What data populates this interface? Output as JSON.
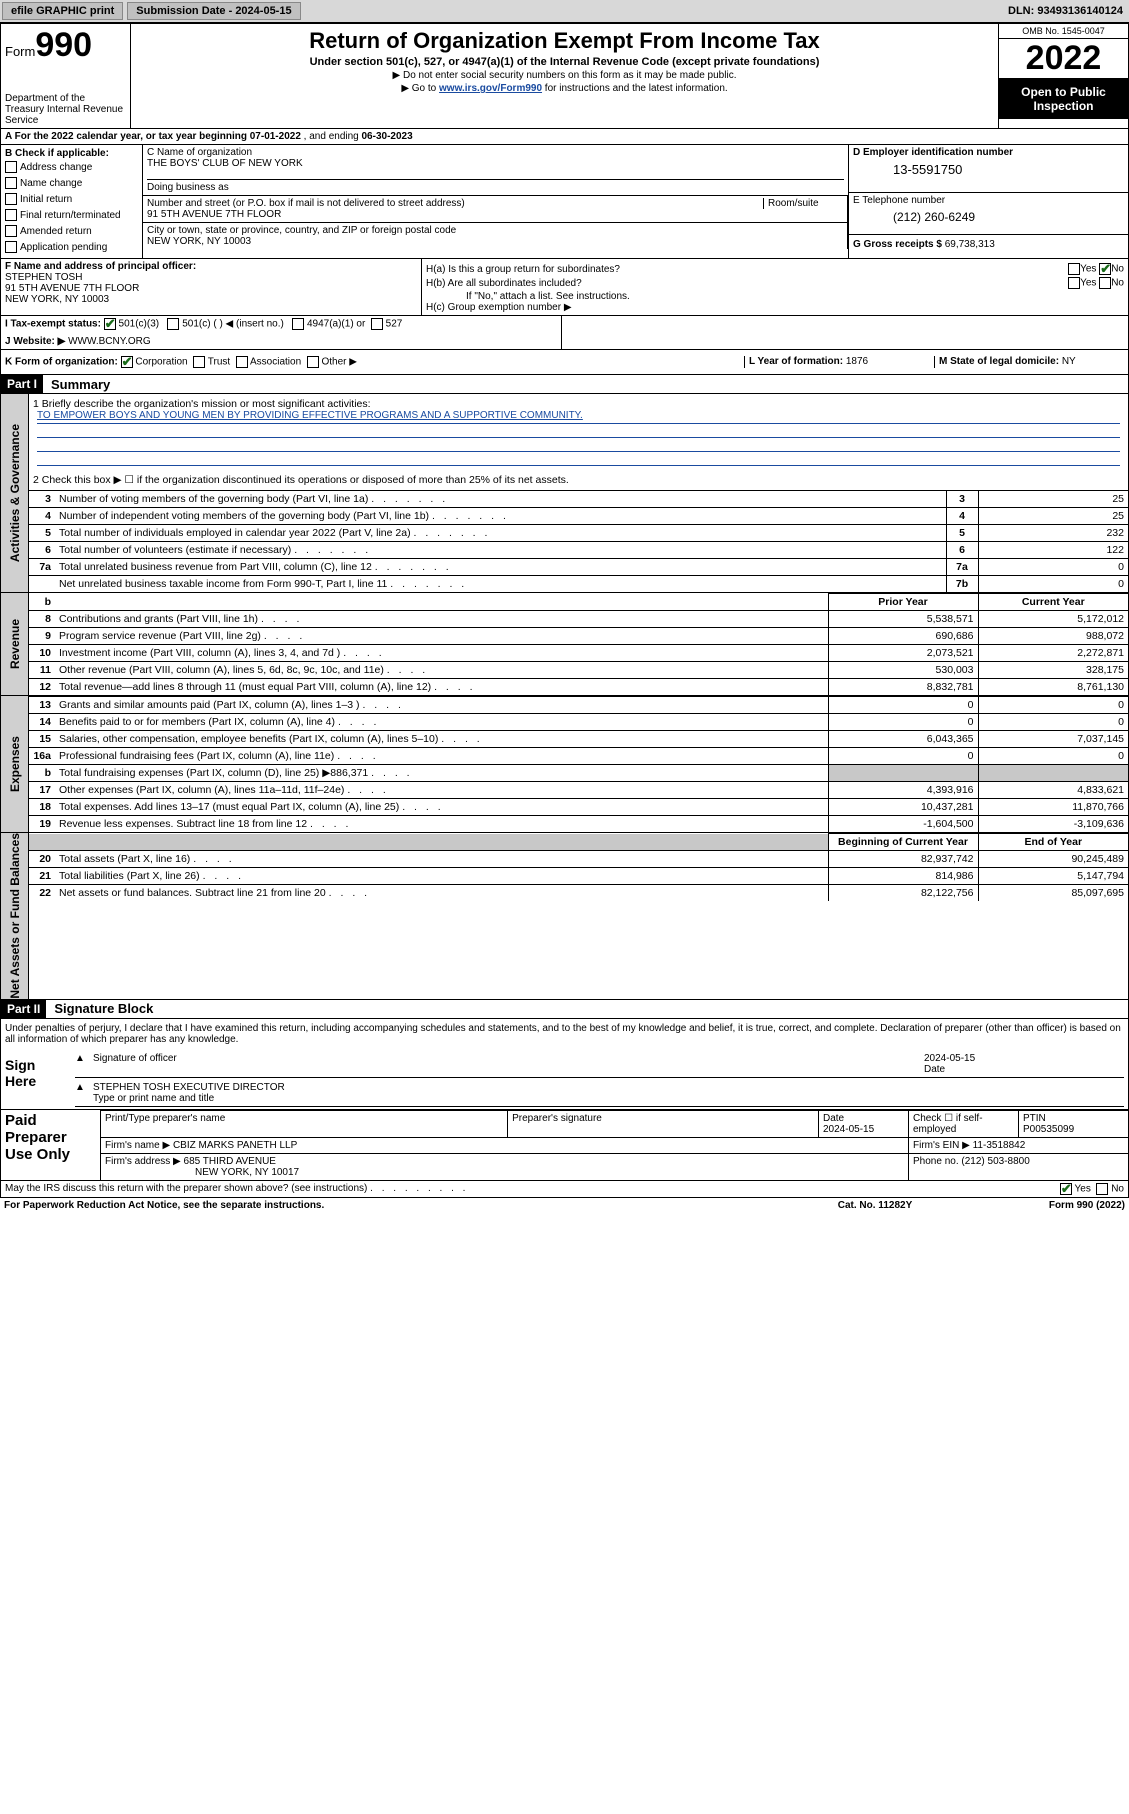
{
  "topbar": {
    "efile": "efile GRAPHIC print",
    "submission_label": "Submission Date - 2024-05-15",
    "dln": "DLN: 93493136140124"
  },
  "header": {
    "form_prefix": "Form",
    "form_number": "990",
    "title": "Return of Organization Exempt From Income Tax",
    "subtitle": "Under section 501(c), 527, or 4947(a)(1) of the Internal Revenue Code (except private foundations)",
    "note1": "▶ Do not enter social security numbers on this form as it may be made public.",
    "note2_pre": "▶ Go to ",
    "note2_link": "www.irs.gov/Form990",
    "note2_post": " for instructions and the latest information.",
    "dept": "Department of the Treasury Internal Revenue Service",
    "omb": "OMB No. 1545-0047",
    "tax_year": "2022",
    "inspection": "Open to Public Inspection"
  },
  "rowA": {
    "text_pre": "A For the 2022 calendar year, or tax year beginning ",
    "begin": "07-01-2022",
    "mid": " , and ending ",
    "end": "06-30-2023"
  },
  "colB": {
    "title": "B Check if applicable:",
    "opts": [
      "Address change",
      "Name change",
      "Initial return",
      "Final return/terminated",
      "Amended return",
      "Application pending"
    ]
  },
  "org": {
    "name_label": "C Name of organization",
    "name": "THE BOYS' CLUB OF NEW YORK",
    "dba_label": "Doing business as",
    "street_label": "Number and street (or P.O. box if mail is not delivered to street address)",
    "room_label": "Room/suite",
    "street": "91 5TH AVENUE 7TH FLOOR",
    "city_label": "City or town, state or province, country, and ZIP or foreign postal code",
    "city": "NEW YORK, NY  10003"
  },
  "ein": {
    "label": "D Employer identification number",
    "value": "13-5591750"
  },
  "telephone": {
    "label": "E Telephone number",
    "value": "(212) 260-6249"
  },
  "gross": {
    "label": "G Gross receipts $",
    "value": "69,738,313"
  },
  "officer": {
    "label": "F Name and address of principal officer:",
    "name": "STEPHEN TOSH",
    "addr1": "91 5TH AVENUE 7TH FLOOR",
    "addr2": "NEW YORK, NY  10003"
  },
  "H": {
    "a": "H(a)  Is this a group return for subordinates?",
    "a_yes": "Yes",
    "a_no": "No",
    "b": "H(b)  Are all subordinates included?",
    "b_yes": "Yes",
    "b_no": "No",
    "b_note": "If \"No,\" attach a list. See instructions.",
    "c": "H(c)  Group exemption number ▶"
  },
  "I": {
    "label": "I   Tax-exempt status:",
    "opt1": "501(c)(3)",
    "opt2": "501(c) (    ) ◀ (insert no.)",
    "opt3": "4947(a)(1) or",
    "opt4": "527"
  },
  "J": {
    "label": "J   Website: ▶",
    "value": "WWW.BCNY.ORG"
  },
  "K": {
    "label": "K Form of organization:",
    "opts": [
      "Corporation",
      "Trust",
      "Association",
      "Other ▶"
    ]
  },
  "L": {
    "label": "L Year of formation:",
    "value": "1876"
  },
  "M": {
    "label": "M State of legal domicile:",
    "value": "NY"
  },
  "parts": {
    "p1": "Part I",
    "p1_title": "Summary",
    "p2": "Part II",
    "p2_title": "Signature Block"
  },
  "summary": {
    "line1_label": "1   Briefly describe the organization's mission or most significant activities:",
    "mission": "TO EMPOWER BOYS AND YOUNG MEN BY PROVIDING EFFECTIVE PROGRAMS AND A SUPPORTIVE COMMUNITY.",
    "line2": "2   Check this box ▶ ☐  if the organization discontinued its operations or disposed of more than 25% of its net assets.",
    "rows_activities": [
      {
        "n": "3",
        "desc": "Number of voting members of the governing body (Part VI, line 1a)",
        "box": "3",
        "val": "25"
      },
      {
        "n": "4",
        "desc": "Number of independent voting members of the governing body (Part VI, line 1b)",
        "box": "4",
        "val": "25"
      },
      {
        "n": "5",
        "desc": "Total number of individuals employed in calendar year 2022 (Part V, line 2a)",
        "box": "5",
        "val": "232"
      },
      {
        "n": "6",
        "desc": "Total number of volunteers (estimate if necessary)",
        "box": "6",
        "val": "122"
      },
      {
        "n": "7a",
        "desc": "Total unrelated business revenue from Part VIII, column (C), line 12",
        "box": "7a",
        "val": "0"
      },
      {
        "n": "",
        "desc": "Net unrelated business taxable income from Form 990-T, Part I, line 11",
        "box": "7b",
        "val": "0"
      }
    ],
    "col_headers": {
      "prior": "Prior Year",
      "current": "Current Year",
      "begin": "Beginning of Current Year",
      "end": "End of Year"
    },
    "rows_revenue": [
      {
        "n": "8",
        "desc": "Contributions and grants (Part VIII, line 1h)",
        "p": "5,538,571",
        "c": "5,172,012"
      },
      {
        "n": "9",
        "desc": "Program service revenue (Part VIII, line 2g)",
        "p": "690,686",
        "c": "988,072"
      },
      {
        "n": "10",
        "desc": "Investment income (Part VIII, column (A), lines 3, 4, and 7d )",
        "p": "2,073,521",
        "c": "2,272,871"
      },
      {
        "n": "11",
        "desc": "Other revenue (Part VIII, column (A), lines 5, 6d, 8c, 9c, 10c, and 11e)",
        "p": "530,003",
        "c": "328,175"
      },
      {
        "n": "12",
        "desc": "Total revenue—add lines 8 through 11 (must equal Part VIII, column (A), line 12)",
        "p": "8,832,781",
        "c": "8,761,130"
      }
    ],
    "rows_expenses": [
      {
        "n": "13",
        "desc": "Grants and similar amounts paid (Part IX, column (A), lines 1–3 )",
        "p": "0",
        "c": "0"
      },
      {
        "n": "14",
        "desc": "Benefits paid to or for members (Part IX, column (A), line 4)",
        "p": "0",
        "c": "0"
      },
      {
        "n": "15",
        "desc": "Salaries, other compensation, employee benefits (Part IX, column (A), lines 5–10)",
        "p": "6,043,365",
        "c": "7,037,145"
      },
      {
        "n": "16a",
        "desc": "Professional fundraising fees (Part IX, column (A), line 11e)",
        "p": "0",
        "c": "0"
      },
      {
        "n": "b",
        "desc": "Total fundraising expenses (Part IX, column (D), line 25) ▶886,371",
        "p": "",
        "c": "",
        "grey": true
      },
      {
        "n": "17",
        "desc": "Other expenses (Part IX, column (A), lines 11a–11d, 11f–24e)",
        "p": "4,393,916",
        "c": "4,833,621"
      },
      {
        "n": "18",
        "desc": "Total expenses. Add lines 13–17 (must equal Part IX, column (A), line 25)",
        "p": "10,437,281",
        "c": "11,870,766"
      },
      {
        "n": "19",
        "desc": "Revenue less expenses. Subtract line 18 from line 12",
        "p": "-1,604,500",
        "c": "-3,109,636"
      }
    ],
    "rows_netassets": [
      {
        "n": "20",
        "desc": "Total assets (Part X, line 16)",
        "p": "82,937,742",
        "c": "90,245,489"
      },
      {
        "n": "21",
        "desc": "Total liabilities (Part X, line 26)",
        "p": "814,986",
        "c": "5,147,794"
      },
      {
        "n": "22",
        "desc": "Net assets or fund balances. Subtract line 21 from line 20",
        "p": "82,122,756",
        "c": "85,097,695"
      }
    ]
  },
  "vtabs": {
    "activities": "Activities & Governance",
    "revenue": "Revenue",
    "expenses": "Expenses",
    "netassets": "Net Assets or Fund Balances"
  },
  "signature": {
    "declaration": "Under penalties of perjury, I declare that I have examined this return, including accompanying schedules and statements, and to the best of my knowledge and belief, it is true, correct, and complete. Declaration of preparer (other than officer) is based on all information of which preparer has any knowledge.",
    "sign_here": "Sign Here",
    "sig_officer_label": "Signature of officer",
    "date_label": "Date",
    "sig_date": "2024-05-15",
    "officer_name": "STEPHEN TOSH  EXECUTIVE DIRECTOR",
    "type_name_label": "Type or print name and title"
  },
  "preparer": {
    "title": "Paid Preparer Use Only",
    "col_print": "Print/Type preparer's name",
    "col_sig": "Preparer's signature",
    "col_date": "Date",
    "date_val": "2024-05-15",
    "col_check": "Check ☐ if self-employed",
    "col_ptin": "PTIN",
    "ptin_val": "P00535099",
    "firm_name_label": "Firm's name      ▶",
    "firm_name": "CBIZ MARKS PANETH LLP",
    "firm_ein_label": "Firm's EIN ▶",
    "firm_ein": "11-3518842",
    "firm_addr_label": "Firm's address ▶",
    "firm_addr1": "685 THIRD AVENUE",
    "firm_addr2": "NEW YORK, NY  10017",
    "phone_label": "Phone no.",
    "phone": "(212) 503-8800"
  },
  "footer": {
    "discuss": "May the IRS discuss this return with the preparer shown above? (see instructions)",
    "yes": "Yes",
    "no": "No",
    "paperwork": "For Paperwork Reduction Act Notice, see the separate instructions.",
    "catno": "Cat. No. 11282Y",
    "formno": "Form 990 (2022)"
  },
  "colors": {
    "link": "#1a4ba0",
    "check": "#1a6b1a",
    "grey": "#c8c8c8",
    "tab_bg": "#d0d0d0"
  }
}
